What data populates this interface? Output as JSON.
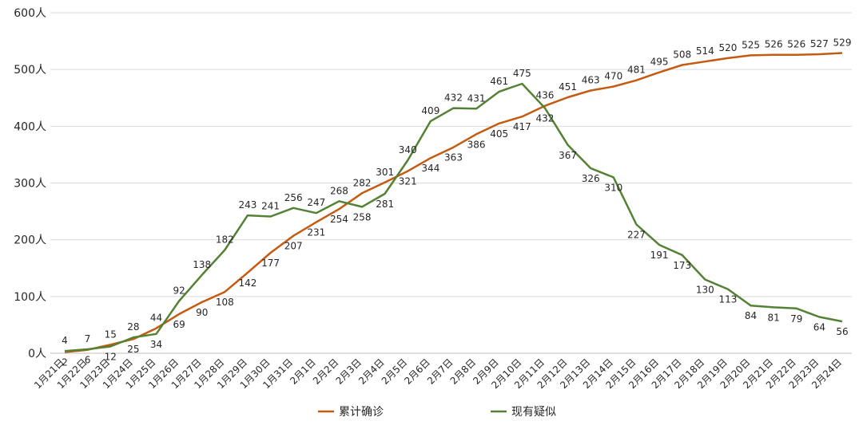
{
  "chart_data": {
    "type": "line",
    "title": "",
    "xlabel": "",
    "ylabel": "",
    "ylim": [
      0,
      600
    ],
    "y_ticks": [
      0,
      100,
      200,
      300,
      400,
      500,
      600
    ],
    "y_tick_labels": [
      "0人",
      "100人",
      "200人",
      "300人",
      "400人",
      "500人",
      "600人"
    ],
    "grid": true,
    "legend_position": "bottom",
    "categories": [
      "1月21日",
      "1月22日",
      "1月23日",
      "1月24日",
      "1月25日",
      "1月26日",
      "1月27日",
      "1月28日",
      "1月29日",
      "1月30日",
      "1月31日",
      "2月1日",
      "2月2日",
      "2月3日",
      "2月4日",
      "2月5日",
      "2月6日",
      "2月7日",
      "2月8日",
      "2月9日",
      "2月10日",
      "2月11日",
      "2月12日",
      "2月13日",
      "2月14日",
      "2月15日",
      "2月16日",
      "2月17日",
      "2月18日",
      "2月19日",
      "2月20日",
      "2月21日",
      "2月22日",
      "2月23日",
      "2月24日"
    ],
    "series": [
      {
        "name": "累计确诊",
        "color": "#c55a11",
        "values": [
          2,
          6,
          15,
          25,
          44,
          69,
          90,
          108,
          142,
          177,
          207,
          231,
          254,
          282,
          301,
          321,
          344,
          363,
          386,
          405,
          417,
          436,
          451,
          463,
          470,
          481,
          495,
          508,
          514,
          520,
          525,
          526,
          526,
          527,
          529
        ]
      },
      {
        "name": "现有疑似",
        "color": "#548235",
        "values": [
          4,
          7,
          12,
          28,
          34,
          92,
          138,
          182,
          243,
          241,
          256,
          247,
          268,
          258,
          281,
          340,
          409,
          432,
          431,
          461,
          475,
          432,
          367,
          326,
          310,
          227,
          191,
          173,
          130,
          113,
          84,
          81,
          79,
          64,
          56
        ]
      }
    ]
  }
}
